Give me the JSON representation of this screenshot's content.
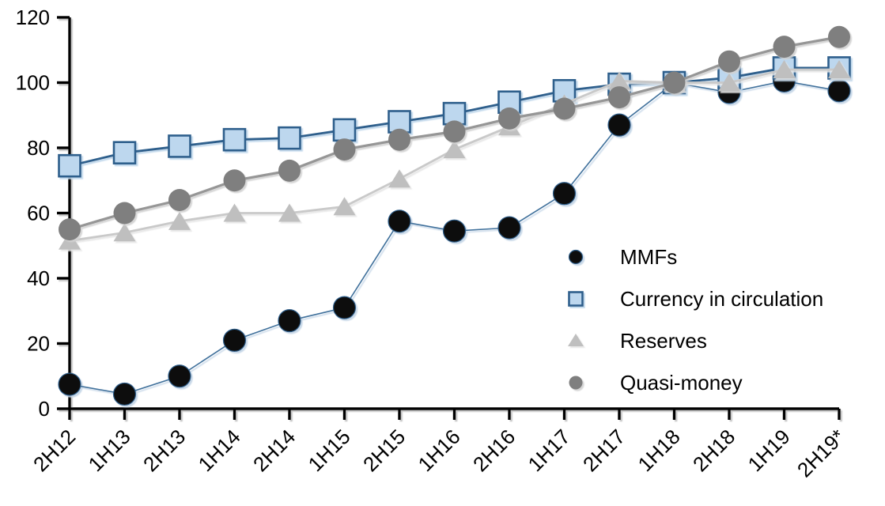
{
  "chart_data": {
    "type": "line",
    "title": "",
    "xlabel": "",
    "ylabel": "",
    "categories": [
      "2H12",
      "1H13",
      "2H13",
      "1H14",
      "2H14",
      "1H15",
      "2H15",
      "1H16",
      "2H16",
      "1H17",
      "2H17",
      "1H18",
      "2H18",
      "1H19",
      "2H19*"
    ],
    "series": [
      {
        "name": "MMFs",
        "marker": "circle",
        "marker_fill": "#0d0d0d",
        "marker_stroke": "#2E5F8C",
        "line_color": "#41719C",
        "line_width": 1.6,
        "shadow_color": "#c3d4e6",
        "values": [
          7.5,
          4.5,
          10,
          21,
          27,
          31,
          57.5,
          54.5,
          55.5,
          66,
          87,
          100,
          97,
          100.5,
          97.5
        ]
      },
      {
        "name": "Currency in circulation",
        "marker": "square",
        "marker_fill": "#BDD7EE",
        "marker_stroke": "#2E5F8C",
        "line_color": "#2E5F8C",
        "line_width": 2.8,
        "shadow_color": "#bcd4ea",
        "values": [
          74.5,
          78.5,
          80.5,
          82.5,
          83,
          85.5,
          88,
          90.5,
          94,
          97.5,
          99.5,
          100,
          101.5,
          104.5,
          104.5
        ]
      },
      {
        "name": "Reserves",
        "marker": "triangle",
        "marker_fill": "#BFBFBF",
        "marker_stroke": "none",
        "line_color": "#C9C9C9",
        "line_width": 2.8,
        "shadow_color": "#e6e6e6",
        "values": [
          51.5,
          54,
          57.5,
          60,
          60,
          62,
          70.5,
          79.5,
          86.5,
          93.5,
          100.5,
          100,
          100,
          104,
          104
        ]
      },
      {
        "name": "Quasi-money",
        "marker": "circle",
        "marker_fill": "#7F7F7F",
        "marker_stroke": "none",
        "line_color": "#969696",
        "line_width": 3.2,
        "shadow_color": "#d2d2d2",
        "values": [
          55,
          60,
          64,
          70,
          73,
          79.5,
          82.5,
          85,
          89,
          92,
          95.5,
          100,
          106.5,
          111,
          114
        ]
      }
    ],
    "ylim": [
      0,
      120
    ],
    "ytick_step": 20,
    "ytick_labels": [
      "0",
      "20",
      "40",
      "60",
      "80",
      "100",
      "120"
    ],
    "grid": false,
    "legend_position": "inside-right",
    "axis_color": "#000000"
  }
}
